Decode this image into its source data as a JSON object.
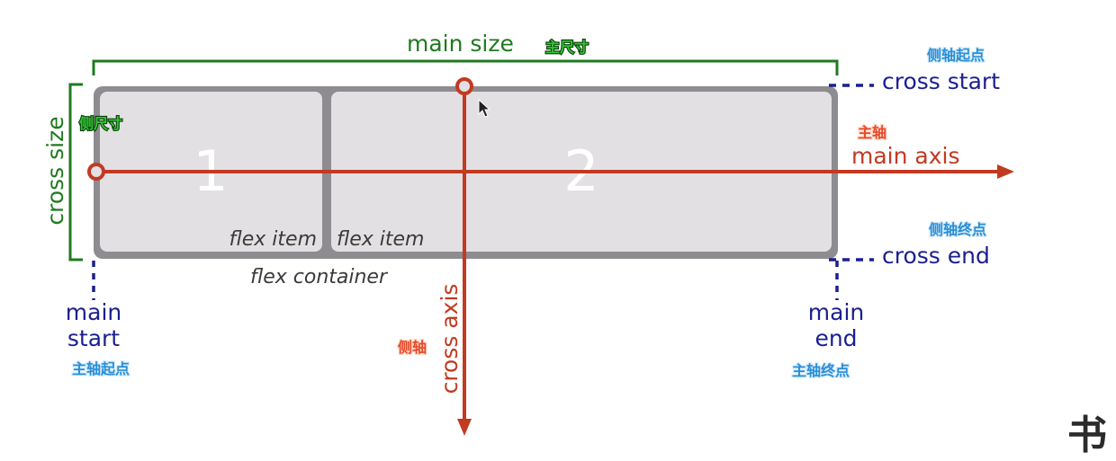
{
  "labels": {
    "main_size": "main size",
    "main_size_cn": "主尺寸",
    "cross_size": "cross size",
    "cross_size_cn": "侧尺寸",
    "cross_start": "cross start",
    "cross_start_cn": "侧轴起点",
    "cross_end": "cross end",
    "cross_end_cn": "侧轴终点",
    "main_axis": "main axis",
    "main_axis_cn": "主轴",
    "cross_axis": "cross axis",
    "cross_axis_cn": "侧轴",
    "main_start_line1": "main",
    "main_start_line2": "start",
    "main_start_cn": "主轴起点",
    "main_end_line1": "main",
    "main_end_line2": "end",
    "main_end_cn": "主轴终点",
    "flex_container": "flex container"
  },
  "items": [
    {
      "number": "1",
      "label": "flex item"
    },
    {
      "number": "2",
      "label": "flex item"
    }
  ],
  "watermark": "书",
  "colors": {
    "size_green": "#1f7a1f",
    "endpoint_blue": "#1b1f8f",
    "axis_red": "#c23a22",
    "container_border": "#8e8c90",
    "item_fill": "#e2e0e3"
  }
}
